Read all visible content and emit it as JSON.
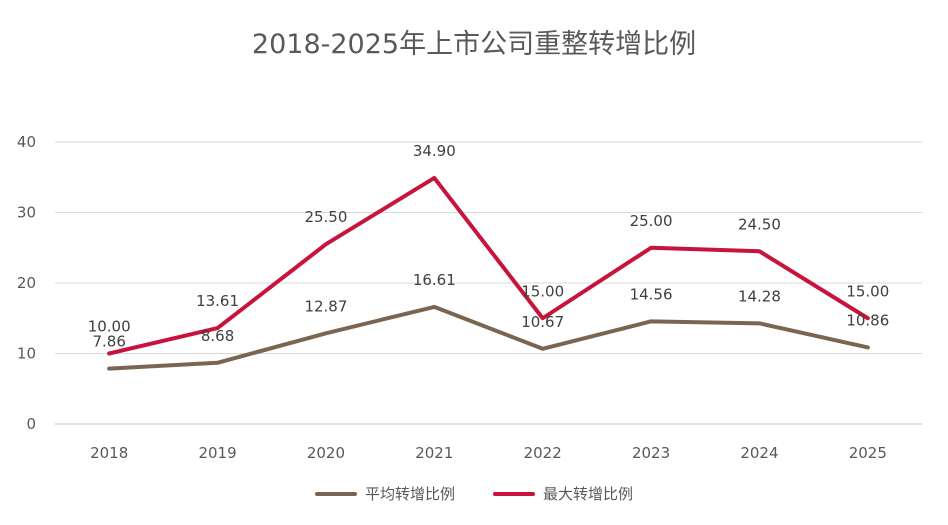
{
  "chart_data": {
    "type": "line",
    "title": "2018-2025年上市公司重整转增比例",
    "categories": [
      "2018",
      "2019",
      "2020",
      "2021",
      "2022",
      "2023",
      "2024",
      "2025"
    ],
    "ylim": [
      0,
      40
    ],
    "yticks": [
      0,
      10,
      20,
      30,
      40
    ],
    "grid": true,
    "legend_position": "bottom",
    "series": [
      {
        "name": "平均转增比例",
        "color": "#7a6650",
        "values": [
          7.86,
          8.68,
          12.87,
          16.61,
          10.67,
          14.56,
          14.28,
          10.86
        ],
        "labels": [
          "7.86",
          "8.68",
          "12.87",
          "16.61",
          "10.67",
          "14.56",
          "14.28",
          "10.86"
        ]
      },
      {
        "name": "最大转增比例",
        "color": "#c8143c",
        "values": [
          10.0,
          13.61,
          25.5,
          34.9,
          15.0,
          25.0,
          24.5,
          15.0
        ],
        "labels": [
          "10.00",
          "13.61",
          "25.50",
          "34.90",
          "15.00",
          "25.00",
          "24.50",
          "15.00"
        ]
      }
    ]
  }
}
